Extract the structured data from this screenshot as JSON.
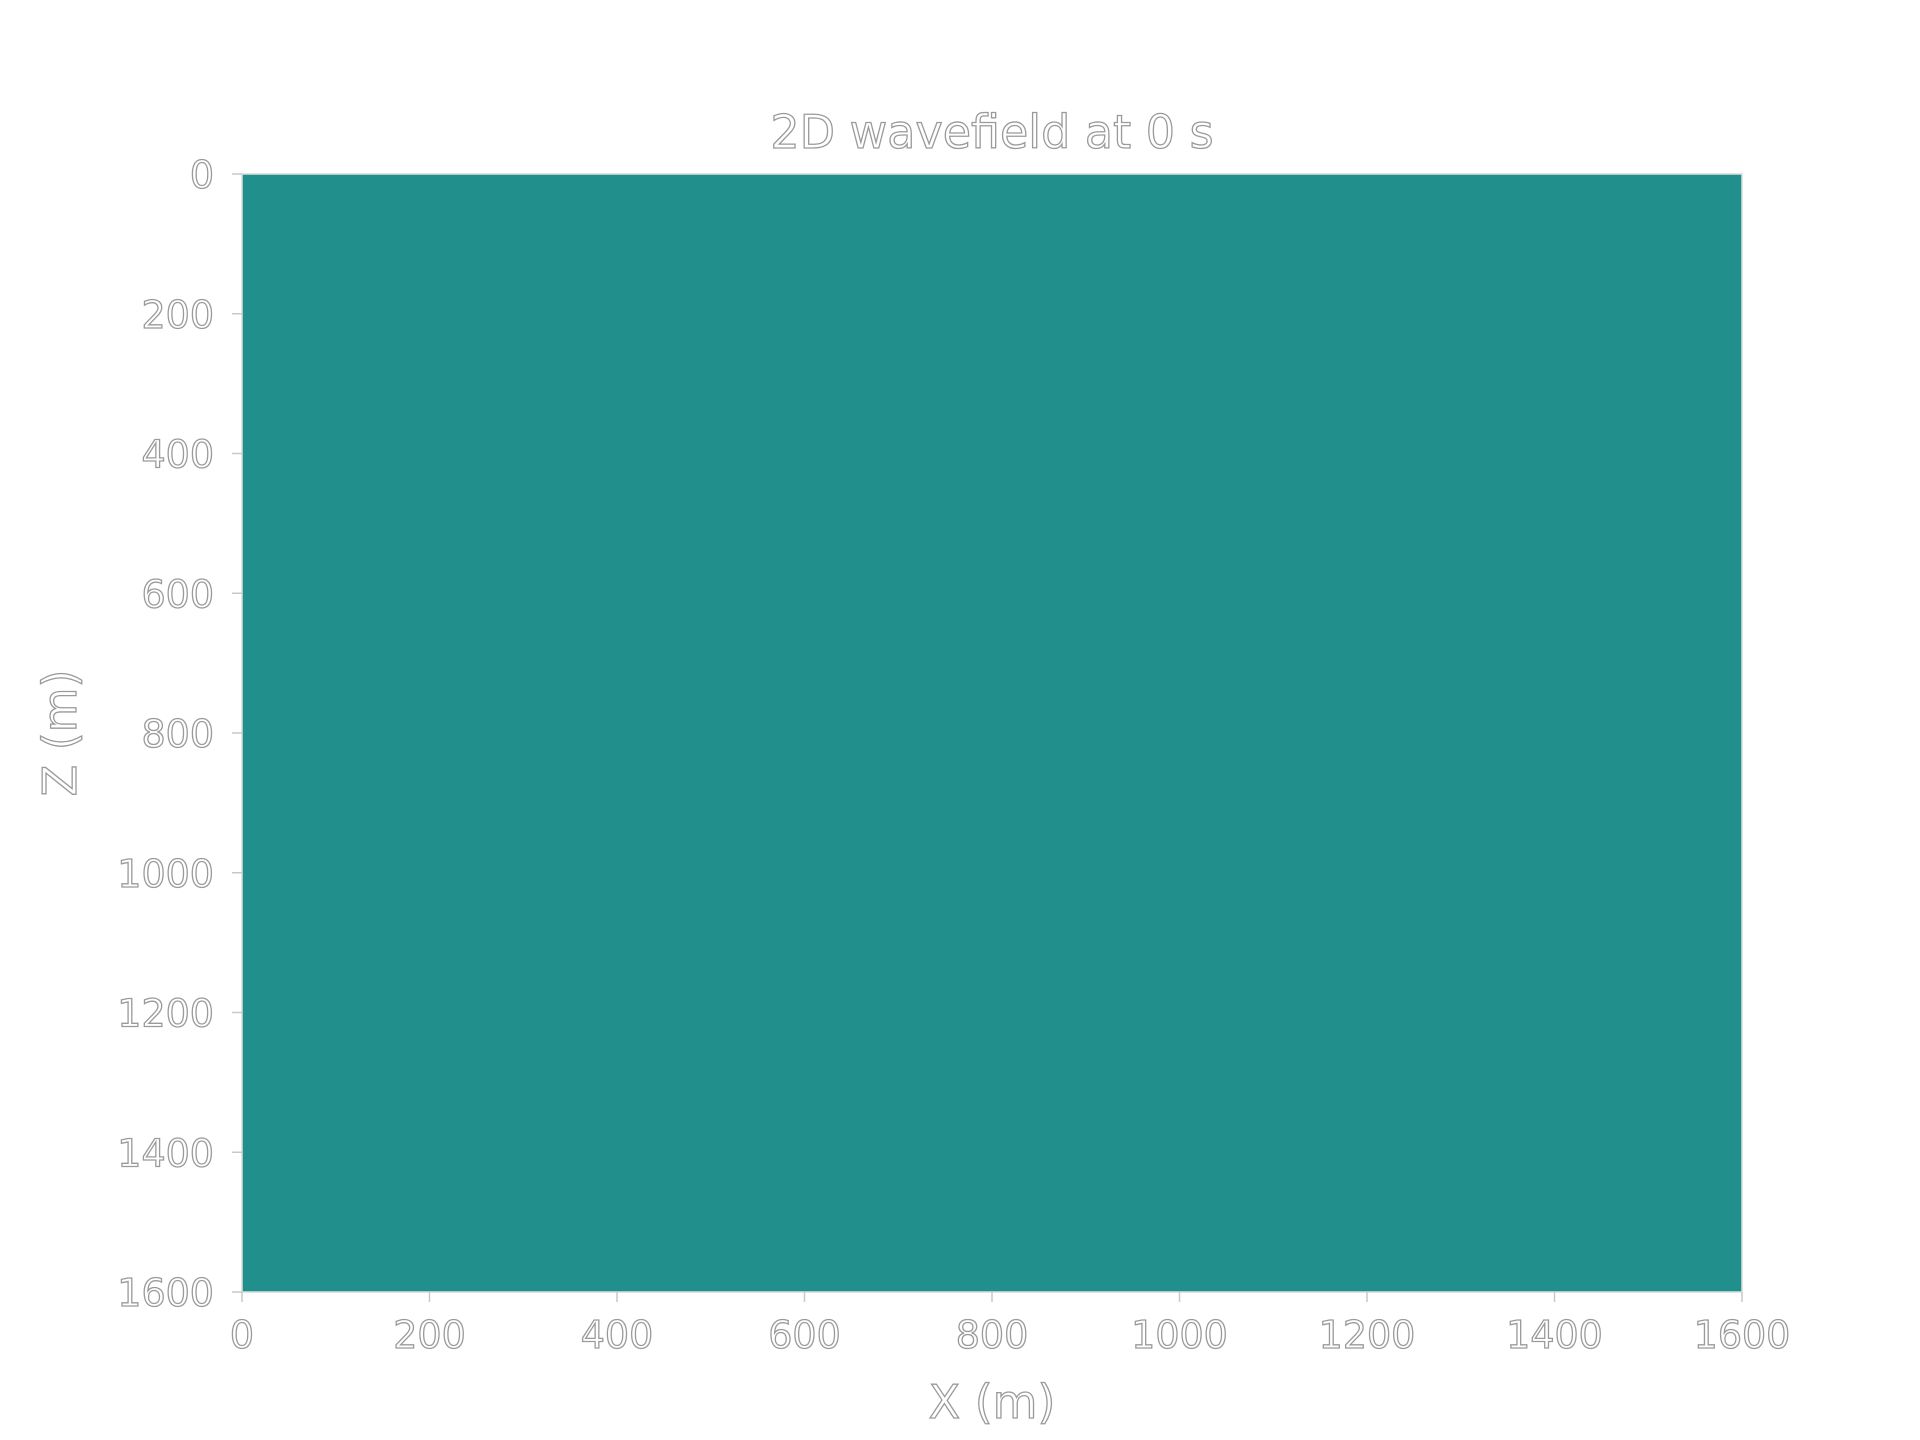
{
  "chart_data": {
    "type": "heatmap",
    "title": "2D wavefield at 0 s",
    "xlabel": "X (m)",
    "ylabel": "Z (m)",
    "xlim": [
      0,
      1600
    ],
    "ylim": [
      1600,
      0
    ],
    "x_ticks": [
      0,
      200,
      400,
      600,
      800,
      1000,
      1200,
      1400,
      1600
    ],
    "y_ticks": [
      0,
      200,
      400,
      600,
      800,
      1000,
      1200,
      1400,
      1600
    ],
    "x_tick_labels": [
      "0",
      "200",
      "400",
      "600",
      "800",
      "1000",
      "1200",
      "1400",
      "1600"
    ],
    "y_tick_labels": [
      "0",
      "200",
      "400",
      "600",
      "800",
      "1000",
      "1200",
      "1400",
      "1600"
    ],
    "y_axis_inverted": true,
    "grid": false,
    "field_value": 0,
    "field_color": "#21908d"
  }
}
